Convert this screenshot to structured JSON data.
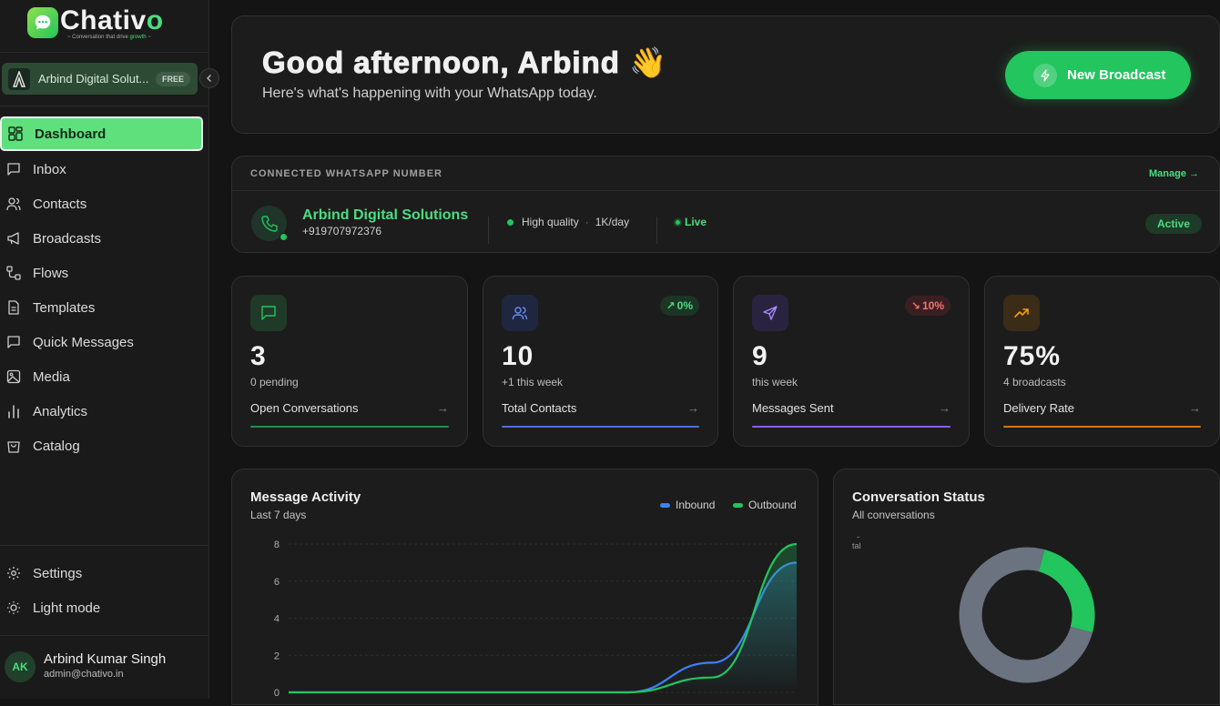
{
  "brand": {
    "name_main": "Chativ",
    "name_accent": "o",
    "tagline_main": "~ Conversation that drive ",
    "tagline_accent": "growth",
    "tagline_end": " ~"
  },
  "workspace": {
    "name": "Arbind Digital Solut...",
    "plan": "FREE"
  },
  "nav": [
    {
      "label": "Dashboard",
      "icon": "dashboard-icon",
      "active": true
    },
    {
      "label": "Inbox",
      "icon": "inbox-icon"
    },
    {
      "label": "Contacts",
      "icon": "contacts-icon"
    },
    {
      "label": "Broadcasts",
      "icon": "megaphone-icon"
    },
    {
      "label": "Flows",
      "icon": "flows-icon"
    },
    {
      "label": "Templates",
      "icon": "template-icon"
    },
    {
      "label": "Quick Messages",
      "icon": "quick-message-icon"
    },
    {
      "label": "Media",
      "icon": "image-icon"
    },
    {
      "label": "Analytics",
      "icon": "bar-chart-icon"
    },
    {
      "label": "Catalog",
      "icon": "shopping-bag-icon"
    }
  ],
  "bottom_nav": [
    {
      "label": "Settings",
      "icon": "gear-icon"
    },
    {
      "label": "Light mode",
      "icon": "sun-icon"
    }
  ],
  "user": {
    "initials": "AK",
    "name": "Arbind Kumar Singh",
    "email": "admin@chativo.in"
  },
  "greeting": {
    "title": "Good afternoon, Arbind 👋",
    "subtitle": "Here's what's happening with your WhatsApp today.",
    "button": "New Broadcast"
  },
  "connection": {
    "label": "CONNECTED WHATSAPP NUMBER",
    "manage": "Manage →",
    "business": "Arbind Digital Solutions",
    "phone": "+919707972376",
    "quality": "High quality",
    "limit": "1K/day",
    "live": "Live",
    "status": "Active"
  },
  "stats": [
    {
      "value": "3",
      "sub": "0 pending",
      "label": "Open Conversations",
      "icon": "chat-icon",
      "color": "#22c55e",
      "icon_bg": "#1f3a28"
    },
    {
      "value": "10",
      "sub": "+1 this week",
      "label": "Total Contacts",
      "icon": "users-icon",
      "color": "#4f6fe6",
      "icon_bg": "#1f2740",
      "trend": "0%",
      "trend_dir": "up"
    },
    {
      "value": "9",
      "sub": "this week",
      "label": "Messages Sent",
      "icon": "send-icon",
      "color": "#8b5cf6",
      "icon_bg": "#2a2340",
      "trend": "10%",
      "trend_dir": "down"
    },
    {
      "value": "75%",
      "sub": "4 broadcasts",
      "label": "Delivery Rate",
      "icon": "trending-up-icon",
      "color": "#f59e0b",
      "icon_bg": "#3a2c16"
    }
  ],
  "activity": {
    "title": "Message Activity",
    "subtitle": "Last 7 days",
    "legend_inbound": "Inbound",
    "legend_outbound": "Outbound"
  },
  "status_card": {
    "title": "Conversation Status",
    "subtitle": "All conversations",
    "tooltip_line1": "-",
    "tooltip_line2": "tal"
  },
  "chart_data": [
    {
      "type": "line",
      "title": "Message Activity",
      "ylim": [
        0,
        8
      ],
      "yticks": [
        0,
        2,
        4,
        6,
        8
      ],
      "grid": true,
      "legend": "top-right",
      "x": [
        0,
        1,
        2,
        3,
        4,
        5,
        6
      ],
      "series": [
        {
          "name": "Inbound",
          "color": "#3b82f6",
          "values": [
            0,
            0,
            0,
            0,
            0,
            1.6,
            7
          ]
        },
        {
          "name": "Outbound",
          "color": "#22c55e",
          "values": [
            0,
            0,
            0,
            0,
            0,
            0.8,
            8
          ]
        }
      ]
    },
    {
      "type": "pie",
      "title": "Conversation Status",
      "slices": [
        {
          "value": 3,
          "color": "#6b7280"
        },
        {
          "value": 1,
          "color": "#22c55e"
        }
      ]
    }
  ]
}
